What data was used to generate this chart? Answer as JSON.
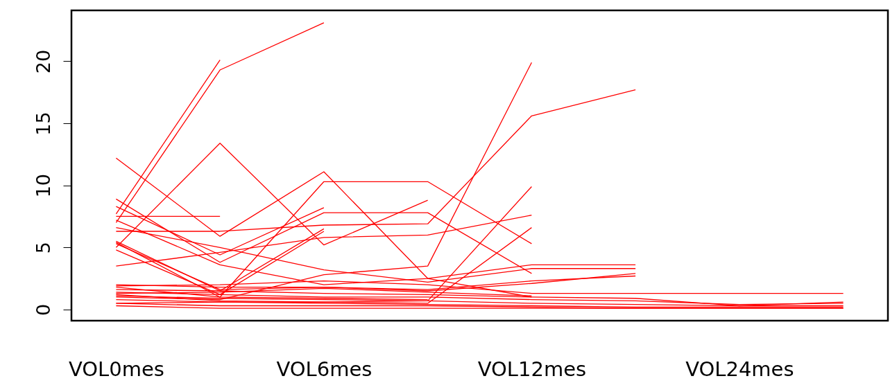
{
  "chart_data": {
    "type": "line",
    "categories": [
      "VOL0mes",
      null,
      "VOL6mes",
      null,
      "VOL12mes",
      null,
      "VOL24mes",
      null
    ],
    "ylim": [
      -0.9,
      24.1
    ],
    "yticks": [
      0,
      5,
      10,
      15,
      20
    ],
    "grid": false,
    "marker": "none",
    "line_style": "solid",
    "series": [
      {
        "color": "#ff0000",
        "values": [
          7.7,
          20.1,
          null,
          null,
          null,
          null,
          null,
          null
        ]
      },
      {
        "color": "#ff0000",
        "values": [
          7.0,
          19.3,
          23.1,
          null,
          null,
          null,
          null,
          null
        ]
      },
      {
        "color": "#ff0000",
        "values": [
          12.2,
          5.9,
          11.1,
          2.5,
          1.0,
          null,
          null,
          null
        ]
      },
      {
        "color": "#ff0000",
        "values": [
          5.0,
          13.4,
          5.2,
          8.8,
          null,
          null,
          null,
          null
        ]
      },
      {
        "color": "#ff0000",
        "values": [
          5.4,
          1.0,
          10.3,
          10.3,
          5.3,
          null,
          null,
          null
        ]
      },
      {
        "color": "#ff0000",
        "values": [
          7.5,
          7.5,
          null,
          null,
          null,
          null,
          null,
          null
        ]
      },
      {
        "color": "#ff0000",
        "values": [
          8.9,
          3.8,
          7.8,
          7.8,
          2.9,
          null,
          null,
          null
        ]
      },
      {
        "color": "#ff0000",
        "values": [
          6.3,
          6.3,
          6.8,
          6.9,
          15.6,
          17.7,
          null,
          null
        ]
      },
      {
        "color": "#ff0000",
        "values": [
          1.0,
          0.8,
          2.8,
          3.5,
          19.9,
          null,
          null,
          null
        ]
      },
      {
        "color": "#ff0000",
        "values": [
          0.5,
          0.6,
          0.6,
          0.7,
          9.9,
          null,
          null,
          null
        ]
      },
      {
        "color": "#ff0000",
        "values": [
          3.5,
          4.6,
          5.8,
          6.0,
          7.6,
          null,
          null,
          null
        ]
      },
      {
        "color": "#ff0000",
        "values": [
          1.2,
          0.7,
          0.6,
          0.5,
          6.6,
          null,
          null,
          null
        ]
      },
      {
        "color": "#ff0000",
        "values": [
          8.3,
          4.4,
          8.2,
          null,
          null,
          null,
          null,
          null
        ]
      },
      {
        "color": "#ff0000",
        "values": [
          5.5,
          1.5,
          6.5,
          null,
          null,
          null,
          null,
          null
        ]
      },
      {
        "color": "#ff0000",
        "values": [
          4.8,
          1.2,
          6.3,
          null,
          null,
          null,
          null,
          null
        ]
      },
      {
        "color": "#ff0000",
        "values": [
          7.2,
          3.6,
          2.0,
          2.5,
          3.6,
          3.6,
          null,
          null
        ]
      },
      {
        "color": "#ff0000",
        "values": [
          6.6,
          5.0,
          3.2,
          2.2,
          3.3,
          3.3,
          null,
          null
        ]
      },
      {
        "color": "#ff0000",
        "values": [
          5.3,
          1.6,
          1.8,
          1.6,
          2.3,
          2.7,
          null,
          null
        ]
      },
      {
        "color": "#ff0000",
        "values": [
          2.0,
          1.8,
          1.8,
          1.5,
          2.1,
          2.9,
          null,
          null
        ]
      },
      {
        "color": "#ff0000",
        "values": [
          1.9,
          2.0,
          2.3,
          2.0,
          1.3,
          1.3,
          1.3,
          1.3
        ]
      },
      {
        "color": "#ff0000",
        "values": [
          1.6,
          1.5,
          1.3,
          1.2,
          1.0,
          0.9,
          0.3,
          0.6
        ]
      },
      {
        "color": "#ff0000",
        "values": [
          1.4,
          1.2,
          1.0,
          1.0,
          0.8,
          0.7,
          0.4,
          0.5
        ]
      },
      {
        "color": "#ff0000",
        "values": [
          1.1,
          0.9,
          0.8,
          0.7,
          0.5,
          0.4,
          0.3,
          0.3
        ]
      },
      {
        "color": "#ff0000",
        "values": [
          0.8,
          0.6,
          0.5,
          0.4,
          0.3,
          0.2,
          0.2,
          0.2
        ]
      },
      {
        "color": "#ff0000",
        "values": [
          0.5,
          0.3,
          0.3,
          0.3,
          0.2,
          0.1,
          0.1,
          0.1
        ]
      },
      {
        "color": "#ff0000",
        "values": [
          0.3,
          0.1,
          0.1,
          0.1,
          0.1,
          0.1,
          0.1,
          0.1
        ]
      },
      {
        "color": "#ff0000",
        "values": [
          1.8,
          1.0,
          0.9,
          0.8,
          null,
          null,
          null,
          null
        ]
      },
      {
        "color": "#ff0000",
        "values": [
          1.3,
          1.4,
          1.7,
          1.4,
          1.1,
          null,
          null,
          null
        ]
      }
    ]
  }
}
